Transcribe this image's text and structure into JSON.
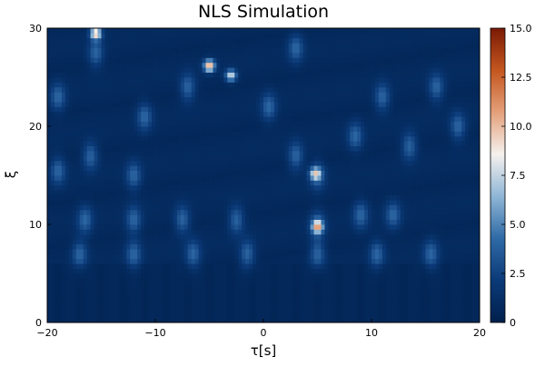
{
  "chart_data": {
    "type": "heatmap",
    "title": "NLS Simulation",
    "xlabel": "τ[s]",
    "ylabel": "ξ",
    "xlim": [
      -20,
      20
    ],
    "ylim": [
      0,
      30
    ],
    "x_ticks": [
      -20,
      -10,
      0,
      10,
      20
    ],
    "x_tick_labels": [
      "−20",
      "−10",
      "0",
      "10",
      "20"
    ],
    "y_ticks": [
      0,
      10,
      20,
      30
    ],
    "y_tick_labels": [
      "0",
      "10",
      "20",
      "30"
    ],
    "colorbar": {
      "min": 0,
      "max": 15,
      "ticks": [
        0,
        2.5,
        5,
        7.5,
        10,
        12.5,
        15
      ],
      "tick_labels": [
        "0",
        "2.5",
        "5.0",
        "7.5",
        "10.0",
        "12.5",
        "15.0"
      ],
      "colors": [
        "#00204c",
        "#0b3a78",
        "#2f6aa6",
        "#8fb6d6",
        "#f5f1ee",
        "#e4a07a",
        "#c4561f",
        "#7a1a05"
      ]
    },
    "background_level": 0.6,
    "soliton_ridges": [
      {
        "x": -17,
        "y": 7
      },
      {
        "x": -12,
        "y": 7
      },
      {
        "x": -6.5,
        "y": 7
      },
      {
        "x": -1.5,
        "y": 7
      },
      {
        "x": 5,
        "y": 7
      },
      {
        "x": 10.5,
        "y": 7
      },
      {
        "x": 15.5,
        "y": 7
      },
      {
        "x": -16.5,
        "y": 10.5
      },
      {
        "x": -12,
        "y": 10.5
      },
      {
        "x": -7.5,
        "y": 10.5
      },
      {
        "x": -2.5,
        "y": 10.5
      },
      {
        "x": 5,
        "y": 10
      },
      {
        "x": 9,
        "y": 11
      },
      {
        "x": 12,
        "y": 11
      },
      {
        "x": -19,
        "y": 15.5
      },
      {
        "x": -16,
        "y": 17
      },
      {
        "x": -12,
        "y": 15
      },
      {
        "x": 3,
        "y": 17
      },
      {
        "x": 5,
        "y": 15
      },
      {
        "x": 8.5,
        "y": 19
      },
      {
        "x": 13.5,
        "y": 18
      },
      {
        "x": 18,
        "y": 20
      },
      {
        "x": -19,
        "y": 23
      },
      {
        "x": -15.5,
        "y": 27.5
      },
      {
        "x": -11,
        "y": 21
      },
      {
        "x": -7,
        "y": 24
      },
      {
        "x": 0.5,
        "y": 22
      },
      {
        "x": 3,
        "y": 28
      },
      {
        "x": 11,
        "y": 23
      },
      {
        "x": 16,
        "y": 24
      }
    ],
    "peaks": [
      {
        "x": -15.5,
        "y": 29.5,
        "value": 9
      },
      {
        "x": -5,
        "y": 26.2,
        "value": 10
      },
      {
        "x": -3,
        "y": 25.2,
        "value": 7
      },
      {
        "x": 5,
        "y": 9.8,
        "value": 7.5
      },
      {
        "x": 4.8,
        "y": 15.2,
        "value": 6
      }
    ]
  }
}
